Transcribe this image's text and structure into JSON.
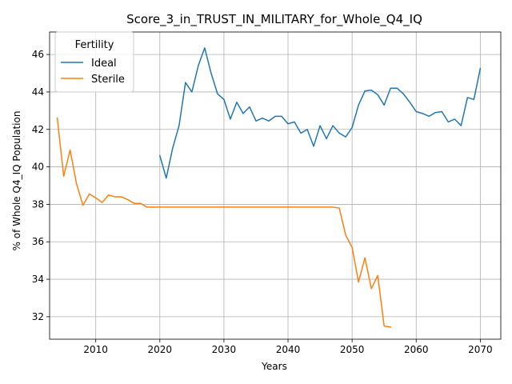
{
  "chart_data": {
    "type": "line",
    "title": "Score_3_in_TRUST_IN_MILITARY_for_Whole_Q4_IQ",
    "xlabel": "Years",
    "ylabel": "% of Whole Q4_IQ Population",
    "xlim": [
      2002.8,
      2073.2
    ],
    "ylim": [
      30.8,
      47.2
    ],
    "xticks": [
      2010,
      2020,
      2030,
      2040,
      2050,
      2060,
      2070
    ],
    "yticks": [
      32,
      34,
      36,
      38,
      40,
      42,
      44,
      46
    ],
    "grid": true,
    "legend": {
      "title": "Fertility",
      "position": "top-left"
    },
    "series": [
      {
        "name": "Ideal",
        "color": "#1f77b4",
        "x": [
          2020,
          2021,
          2022,
          2023,
          2024,
          2025,
          2026,
          2027,
          2028,
          2029,
          2030,
          2031,
          2032,
          2033,
          2034,
          2035,
          2036,
          2037,
          2038,
          2039,
          2040,
          2041,
          2042,
          2043,
          2044,
          2045,
          2046,
          2047,
          2048,
          2049,
          2050,
          2051,
          2052,
          2053,
          2054,
          2055,
          2056,
          2057,
          2058,
          2059,
          2060,
          2061,
          2062,
          2063,
          2064,
          2065,
          2066,
          2067,
          2068,
          2069,
          2070
        ],
        "y": [
          40.6,
          39.4,
          41.0,
          42.2,
          44.5,
          44.0,
          45.4,
          46.35,
          45.0,
          43.9,
          43.6,
          42.55,
          43.45,
          42.85,
          43.2,
          42.45,
          42.6,
          42.45,
          42.7,
          42.7,
          42.3,
          42.4,
          41.8,
          42.0,
          41.1,
          42.2,
          41.5,
          42.2,
          41.8,
          41.6,
          42.1,
          43.3,
          44.05,
          44.1,
          43.85,
          43.3,
          44.2,
          44.2,
          43.9,
          43.45,
          42.95,
          42.85,
          42.7,
          42.9,
          42.95,
          42.4,
          42.55,
          42.2,
          43.7,
          43.6,
          45.25
        ]
      },
      {
        "name": "Sterile",
        "color": "#ff7f0e",
        "x": [
          2004,
          2005,
          2006,
          2007,
          2008,
          2009,
          2010,
          2011,
          2012,
          2013,
          2014,
          2015,
          2016,
          2017,
          2018,
          2019,
          2020,
          2021,
          2022,
          2023,
          2024,
          2025,
          2026,
          2027,
          2028,
          2029,
          2030,
          2031,
          2032,
          2033,
          2034,
          2035,
          2036,
          2037,
          2038,
          2039,
          2040,
          2041,
          2042,
          2043,
          2044,
          2045,
          2046,
          2047,
          2048,
          2049,
          2050,
          2051,
          2052,
          2053,
          2054,
          2055,
          2056
        ],
        "y": [
          42.6,
          39.5,
          40.9,
          39.1,
          37.95,
          38.55,
          38.35,
          38.1,
          38.5,
          38.4,
          38.4,
          38.25,
          38.05,
          38.05,
          37.85,
          37.85,
          37.85,
          37.85,
          37.85,
          37.85,
          37.85,
          37.85,
          37.85,
          37.85,
          37.85,
          37.85,
          37.85,
          37.85,
          37.85,
          37.85,
          37.85,
          37.85,
          37.85,
          37.85,
          37.85,
          37.85,
          37.85,
          37.85,
          37.85,
          37.85,
          37.85,
          37.85,
          37.85,
          37.85,
          37.8,
          36.35,
          35.7,
          33.85,
          35.15,
          33.5,
          34.2,
          31.5,
          31.45
        ]
      }
    ]
  }
}
